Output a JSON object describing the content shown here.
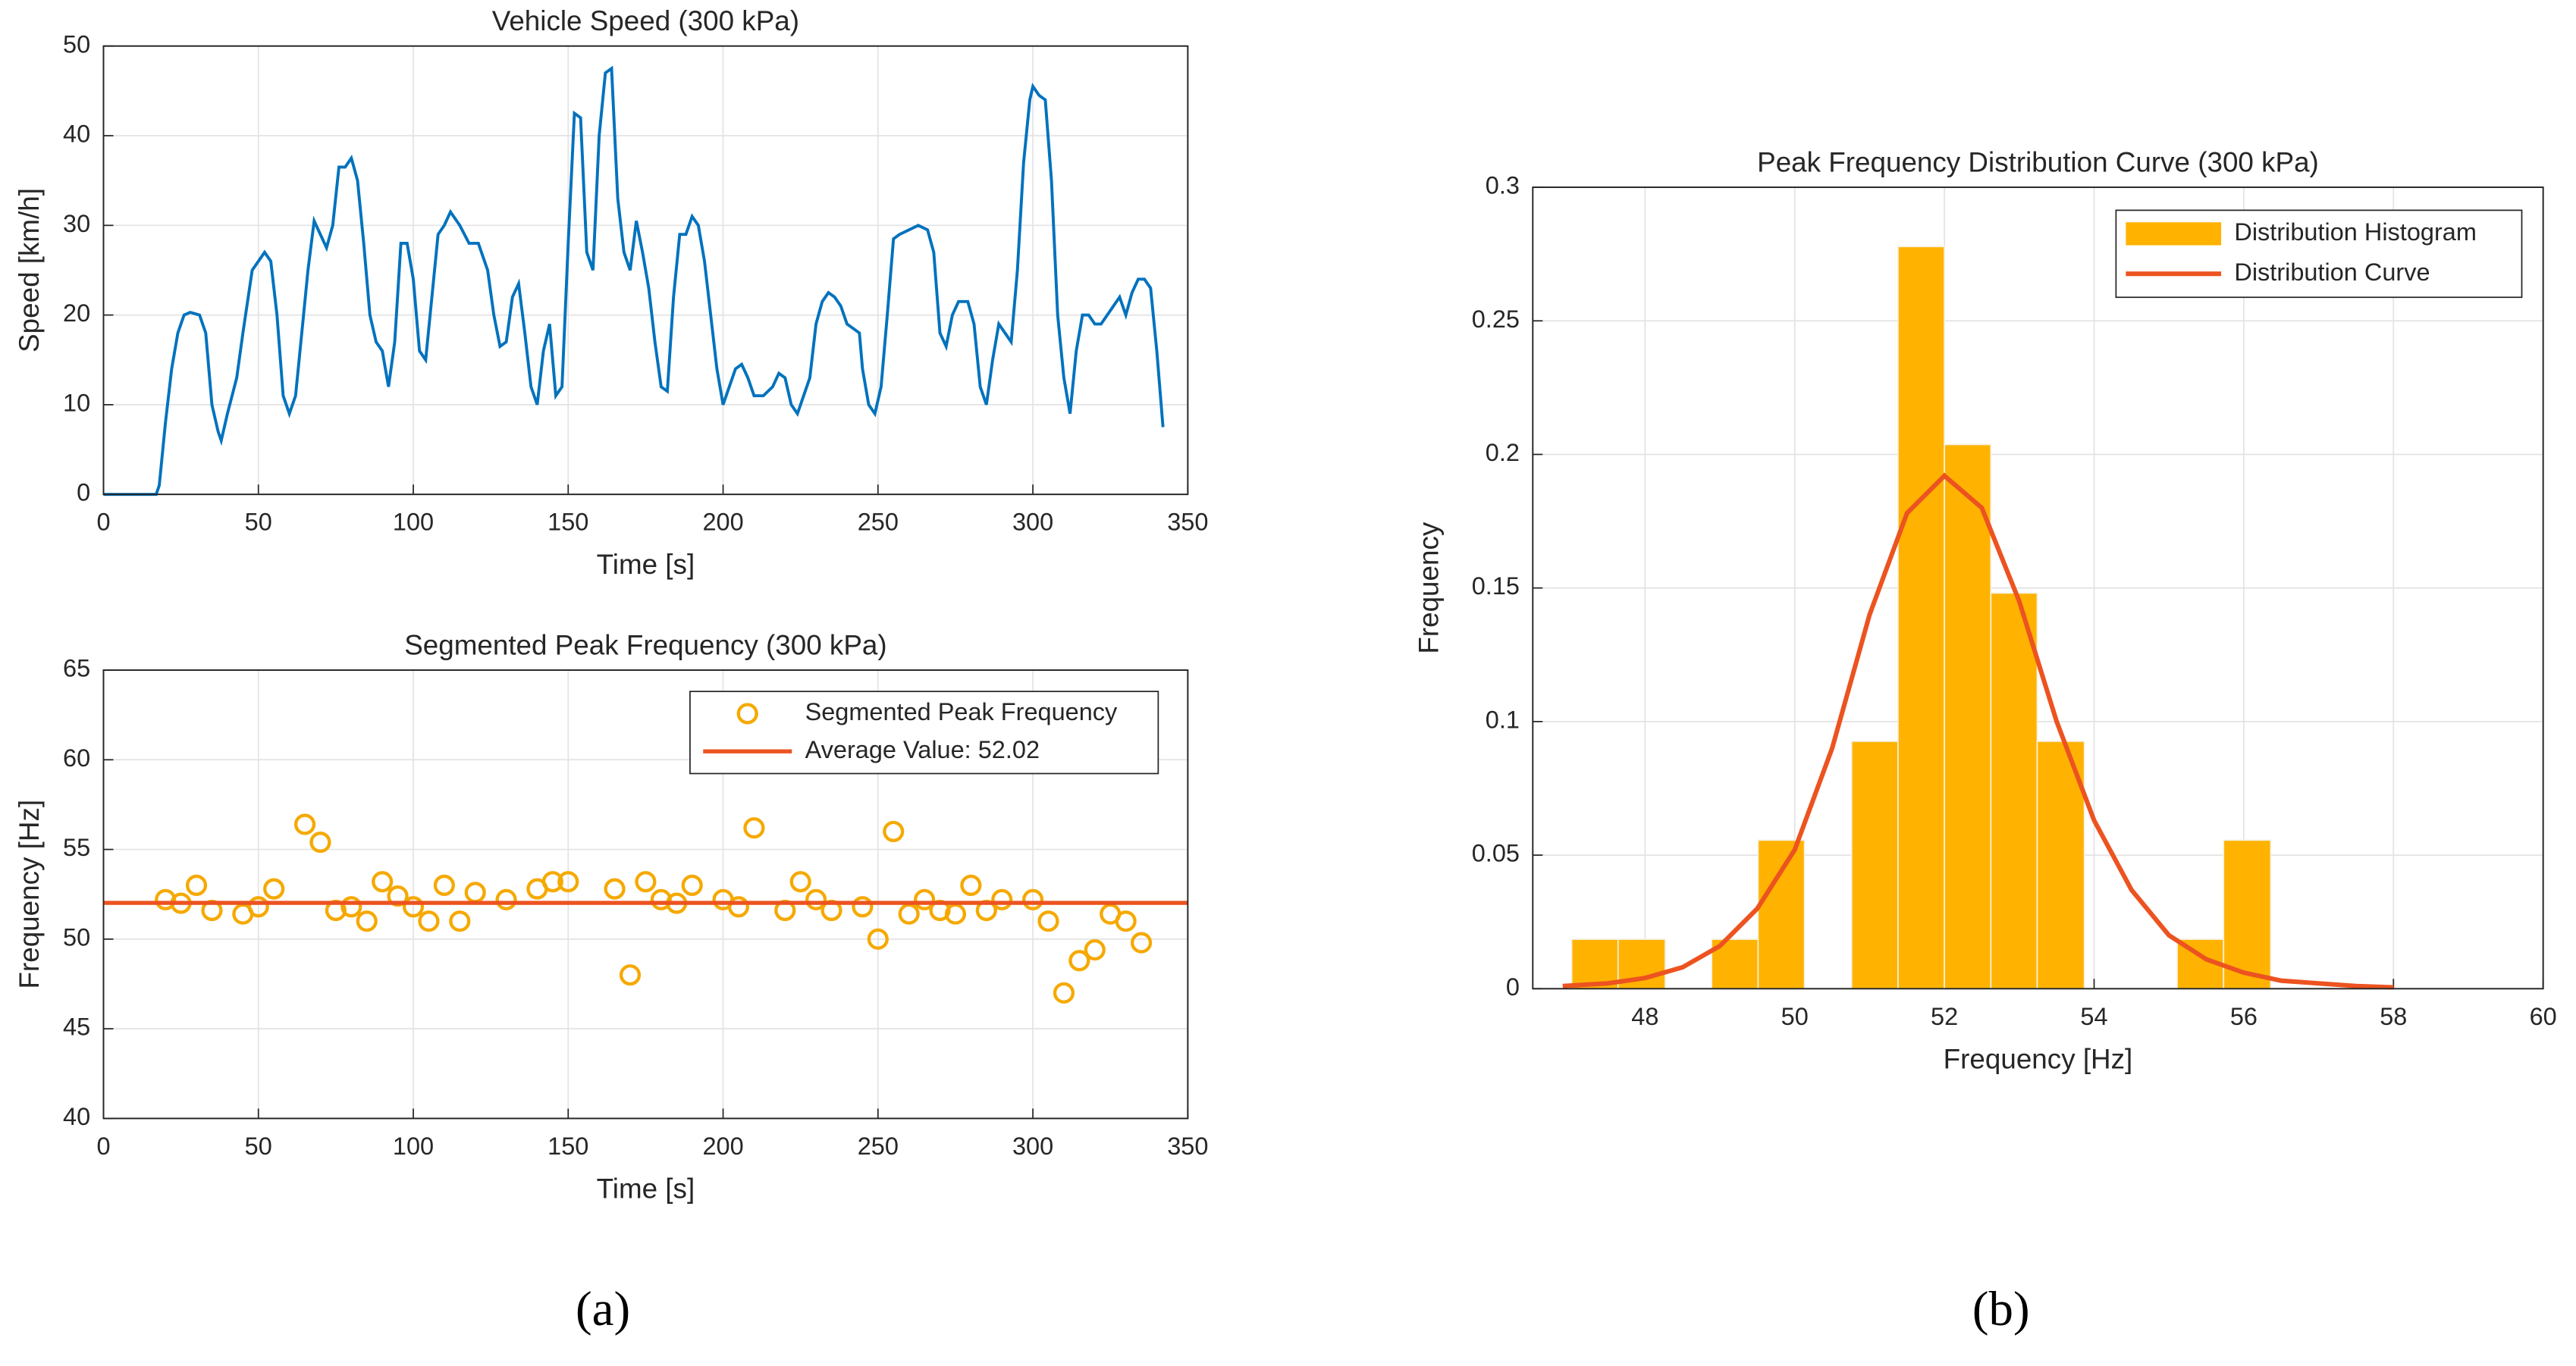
{
  "chart_data": [
    {
      "type": "line",
      "title": "Vehicle Speed (300 kPa)",
      "xlabel": "Time [s]",
      "ylabel": "Speed [km/h]",
      "color": "#0072bd",
      "grid": true,
      "x": [
        0,
        17,
        18,
        20,
        22,
        24,
        26,
        28,
        31,
        33,
        35,
        37,
        38,
        40,
        43,
        45,
        48,
        50,
        52,
        54,
        56,
        58,
        60,
        62,
        64,
        66,
        68,
        70,
        72,
        74,
        76,
        78,
        80,
        82,
        84,
        86,
        88,
        90,
        92,
        94,
        96,
        98,
        100,
        102,
        104,
        106,
        108,
        110,
        112,
        115,
        118,
        121,
        124,
        126,
        128,
        130,
        132,
        134,
        136,
        138,
        140,
        142,
        144,
        146,
        148,
        150,
        152,
        154,
        156,
        158,
        160,
        162,
        164,
        166,
        168,
        170,
        172,
        174,
        176,
        178,
        180,
        182,
        184,
        186,
        188,
        190,
        192,
        194,
        196,
        198,
        200,
        202,
        204,
        206,
        208,
        210,
        213,
        216,
        218,
        220,
        222,
        224,
        226,
        228,
        230,
        232,
        234,
        236,
        238,
        240,
        242,
        244,
        245,
        247,
        249,
        251,
        253,
        255,
        257,
        260,
        263,
        266,
        268,
        270,
        272,
        274,
        276,
        279,
        281,
        283,
        285,
        287,
        289,
        291,
        293,
        295,
        297,
        299,
        300,
        302,
        304,
        306,
        308,
        310,
        312,
        314,
        316,
        318,
        320,
        322,
        324,
        326,
        328,
        330,
        332,
        334,
        336,
        338,
        340,
        342
      ],
      "values": [
        0,
        0,
        1,
        8,
        14,
        18,
        20,
        20.3,
        20,
        18,
        10,
        7,
        6,
        9,
        13,
        18,
        25,
        26,
        27,
        26,
        20,
        11,
        9,
        11,
        18,
        25,
        30.5,
        29,
        27.5,
        30,
        36.5,
        36.5,
        37.5,
        35,
        28,
        20,
        17,
        16,
        12,
        17,
        28,
        28,
        24,
        16,
        15,
        22,
        29,
        30,
        31.5,
        30,
        28,
        28,
        25,
        20,
        16.5,
        17,
        22,
        23.5,
        18,
        12,
        10,
        16,
        19,
        11,
        12,
        28,
        42.5,
        42,
        27,
        25,
        40,
        47,
        47.5,
        33,
        27,
        25,
        30.5,
        27,
        23,
        17,
        12,
        11.5,
        22,
        29,
        29,
        31,
        30,
        26,
        20,
        14,
        10,
        12,
        14,
        14.5,
        13,
        11,
        11,
        12,
        13.5,
        13,
        10,
        9,
        11,
        13,
        19,
        21.5,
        22.5,
        22,
        21,
        19,
        18.5,
        18,
        14,
        10,
        9,
        12,
        20,
        28.5,
        29,
        29.5,
        30,
        29.5,
        27,
        18,
        16.5,
        20,
        21.5,
        21.5,
        19,
        12,
        10,
        15,
        19,
        18,
        17,
        25,
        37,
        44,
        45.5,
        44.5,
        44,
        35,
        20,
        13,
        9,
        16,
        20,
        20,
        19,
        19,
        20,
        21,
        22,
        20,
        22.5,
        24,
        24,
        23,
        16,
        7.5
      ],
      "xlim": [
        0,
        350
      ],
      "xticks": [
        0,
        50,
        100,
        150,
        200,
        250,
        300,
        350
      ],
      "ylim": [
        0,
        50
      ],
      "yticks": [
        0,
        10,
        20,
        30,
        40,
        50
      ]
    },
    {
      "type": "scatter",
      "title": "Segmented Peak Frequency (300 kPa)",
      "xlabel": "Time [s]",
      "ylabel": "Frequency [Hz]",
      "name": "Segmented Peak Frequency",
      "color": "#f5a900",
      "grid": true,
      "legend": "upper right",
      "x": [
        20,
        25,
        30,
        35,
        45,
        50,
        55,
        65,
        70,
        75,
        80,
        85,
        90,
        95,
        100,
        105,
        110,
        115,
        120,
        130,
        140,
        145,
        150,
        165,
        170,
        175,
        180,
        185,
        190,
        200,
        205,
        210,
        220,
        225,
        230,
        235,
        245,
        250,
        255,
        260,
        265,
        270,
        275,
        280,
        285,
        290,
        300,
        305,
        310,
        315,
        320,
        325,
        330,
        335
      ],
      "values": [
        52.2,
        52,
        53,
        51.6,
        51.4,
        51.8,
        52.8,
        56.4,
        55.4,
        51.6,
        51.8,
        51,
        53.2,
        52.4,
        51.8,
        51,
        53,
        51,
        52.6,
        52.2,
        52.8,
        53.2,
        53.2,
        52.8,
        48,
        53.2,
        52.2,
        52,
        53,
        52.2,
        51.8,
        56.2,
        51.6,
        53.2,
        52.2,
        51.6,
        51.8,
        50,
        56,
        51.4,
        52.2,
        51.6,
        51.4,
        53,
        51.6,
        52.2,
        52.2,
        51,
        47,
        48.8,
        49.4,
        51.4,
        51,
        49.8
      ],
      "average": {
        "name": "Average Value: 52.02",
        "value": 52.02,
        "color": "#ec5320"
      },
      "xlim": [
        0,
        350
      ],
      "xticks": [
        0,
        50,
        100,
        150,
        200,
        250,
        300,
        350
      ],
      "ylim": [
        40,
        65
      ],
      "yticks": [
        40,
        45,
        50,
        55,
        60,
        65
      ]
    },
    {
      "type": "histogram",
      "title": "Peak Frequency Distribution Curve (300 kPa)",
      "xlabel": "Frequency [Hz]",
      "ylabel": "Frequency",
      "name": "Distribution Histogram",
      "color": "#ffb300",
      "grid": true,
      "legend": "upper right",
      "bins": [
        47.02,
        47.64,
        48.27,
        48.89,
        49.51,
        50.13,
        50.76,
        51.38,
        52.0,
        52.62,
        53.24,
        53.87,
        54.49,
        55.11,
        55.73,
        56.36
      ],
      "values": [
        0.0185,
        0.0185,
        0,
        0.0185,
        0.0556,
        0,
        0.0926,
        0.2778,
        0.2037,
        0.1481,
        0.0926,
        0,
        0,
        0.0185,
        0.0556
      ],
      "curve": {
        "name": "Distribution Curve",
        "color": "#ec5320",
        "x": [
          46.9,
          47.5,
          48,
          48.5,
          49,
          49.5,
          50,
          50.5,
          51,
          51.5,
          52,
          52.5,
          53,
          53.5,
          54,
          54.5,
          55,
          55.5,
          56,
          56.5,
          57,
          57.5,
          58
        ],
        "values": [
          0.001,
          0.002,
          0.004,
          0.008,
          0.016,
          0.03,
          0.052,
          0.09,
          0.14,
          0.178,
          0.192,
          0.18,
          0.145,
          0.1,
          0.063,
          0.037,
          0.02,
          0.011,
          0.006,
          0.003,
          0.002,
          0.001,
          0.0005
        ]
      },
      "xlim": [
        46.5,
        60
      ],
      "xticks": [
        48,
        50,
        52,
        54,
        56,
        58,
        60
      ],
      "ylim": [
        0,
        0.3
      ],
      "yticks": [
        0,
        0.05,
        0.1,
        0.15,
        0.2,
        0.25,
        0.3
      ]
    }
  ],
  "panel_labels": [
    "(a)",
    "(b)"
  ]
}
